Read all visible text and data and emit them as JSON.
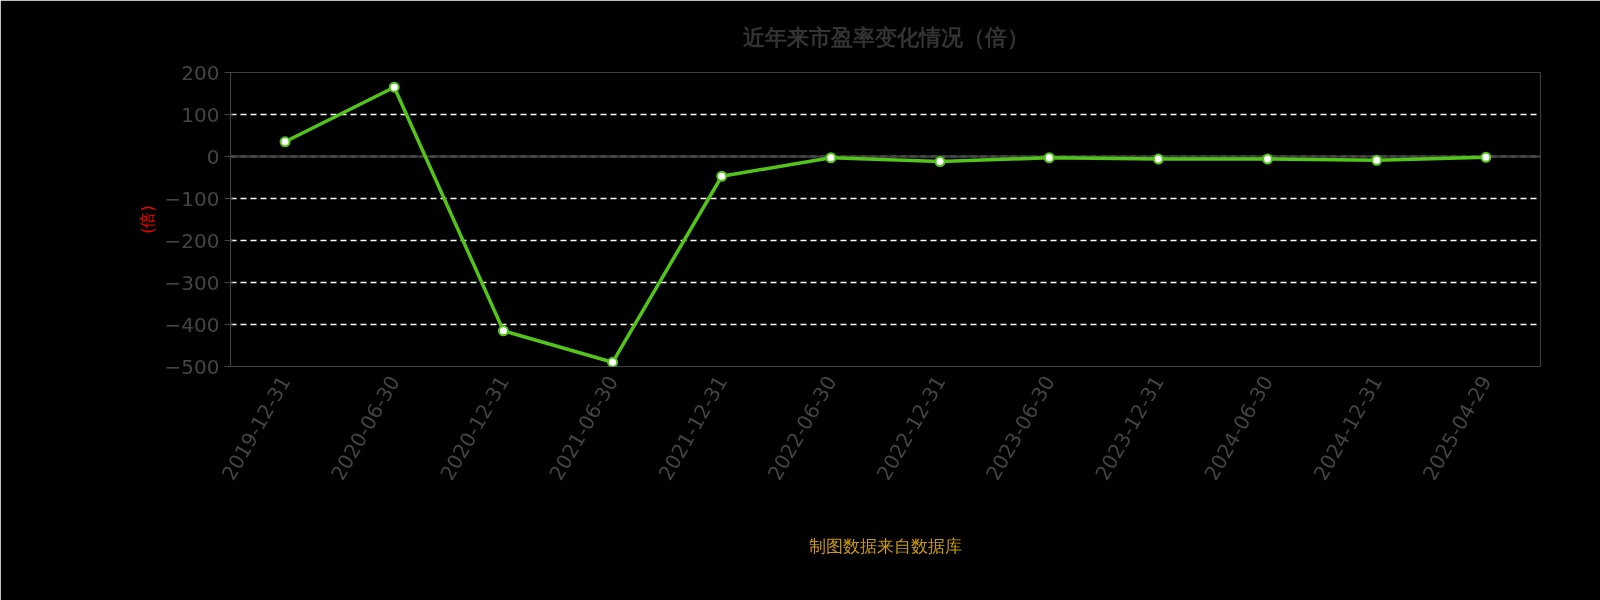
{
  "chart_data": {
    "type": "line",
    "title": "近年来市盈率变化情况（倍）",
    "ylabel": "(倍)",
    "categories": [
      "2019-12-31",
      "2020-06-30",
      "2020-12-31",
      "2021-06-30",
      "2021-12-31",
      "2022-06-30",
      "2022-12-31",
      "2023-06-30",
      "2023-12-31",
      "2024-06-30",
      "2024-12-31",
      "2025-04-29"
    ],
    "series": [
      {
        "color": "#52c41a",
        "values": [
          35,
          165,
          -415,
          -490,
          -47,
          -3,
          -12,
          -3,
          -6,
          -6,
          -9,
          -2
        ]
      }
    ],
    "ylim": [
      -500,
      200
    ],
    "yticks": [
      -500,
      -400,
      -300,
      -200,
      -100,
      0,
      100,
      200
    ],
    "grid": "y",
    "marker": "circle",
    "line_style": "solid",
    "annotations": [
      "制图数据来自数据库"
    ]
  }
}
